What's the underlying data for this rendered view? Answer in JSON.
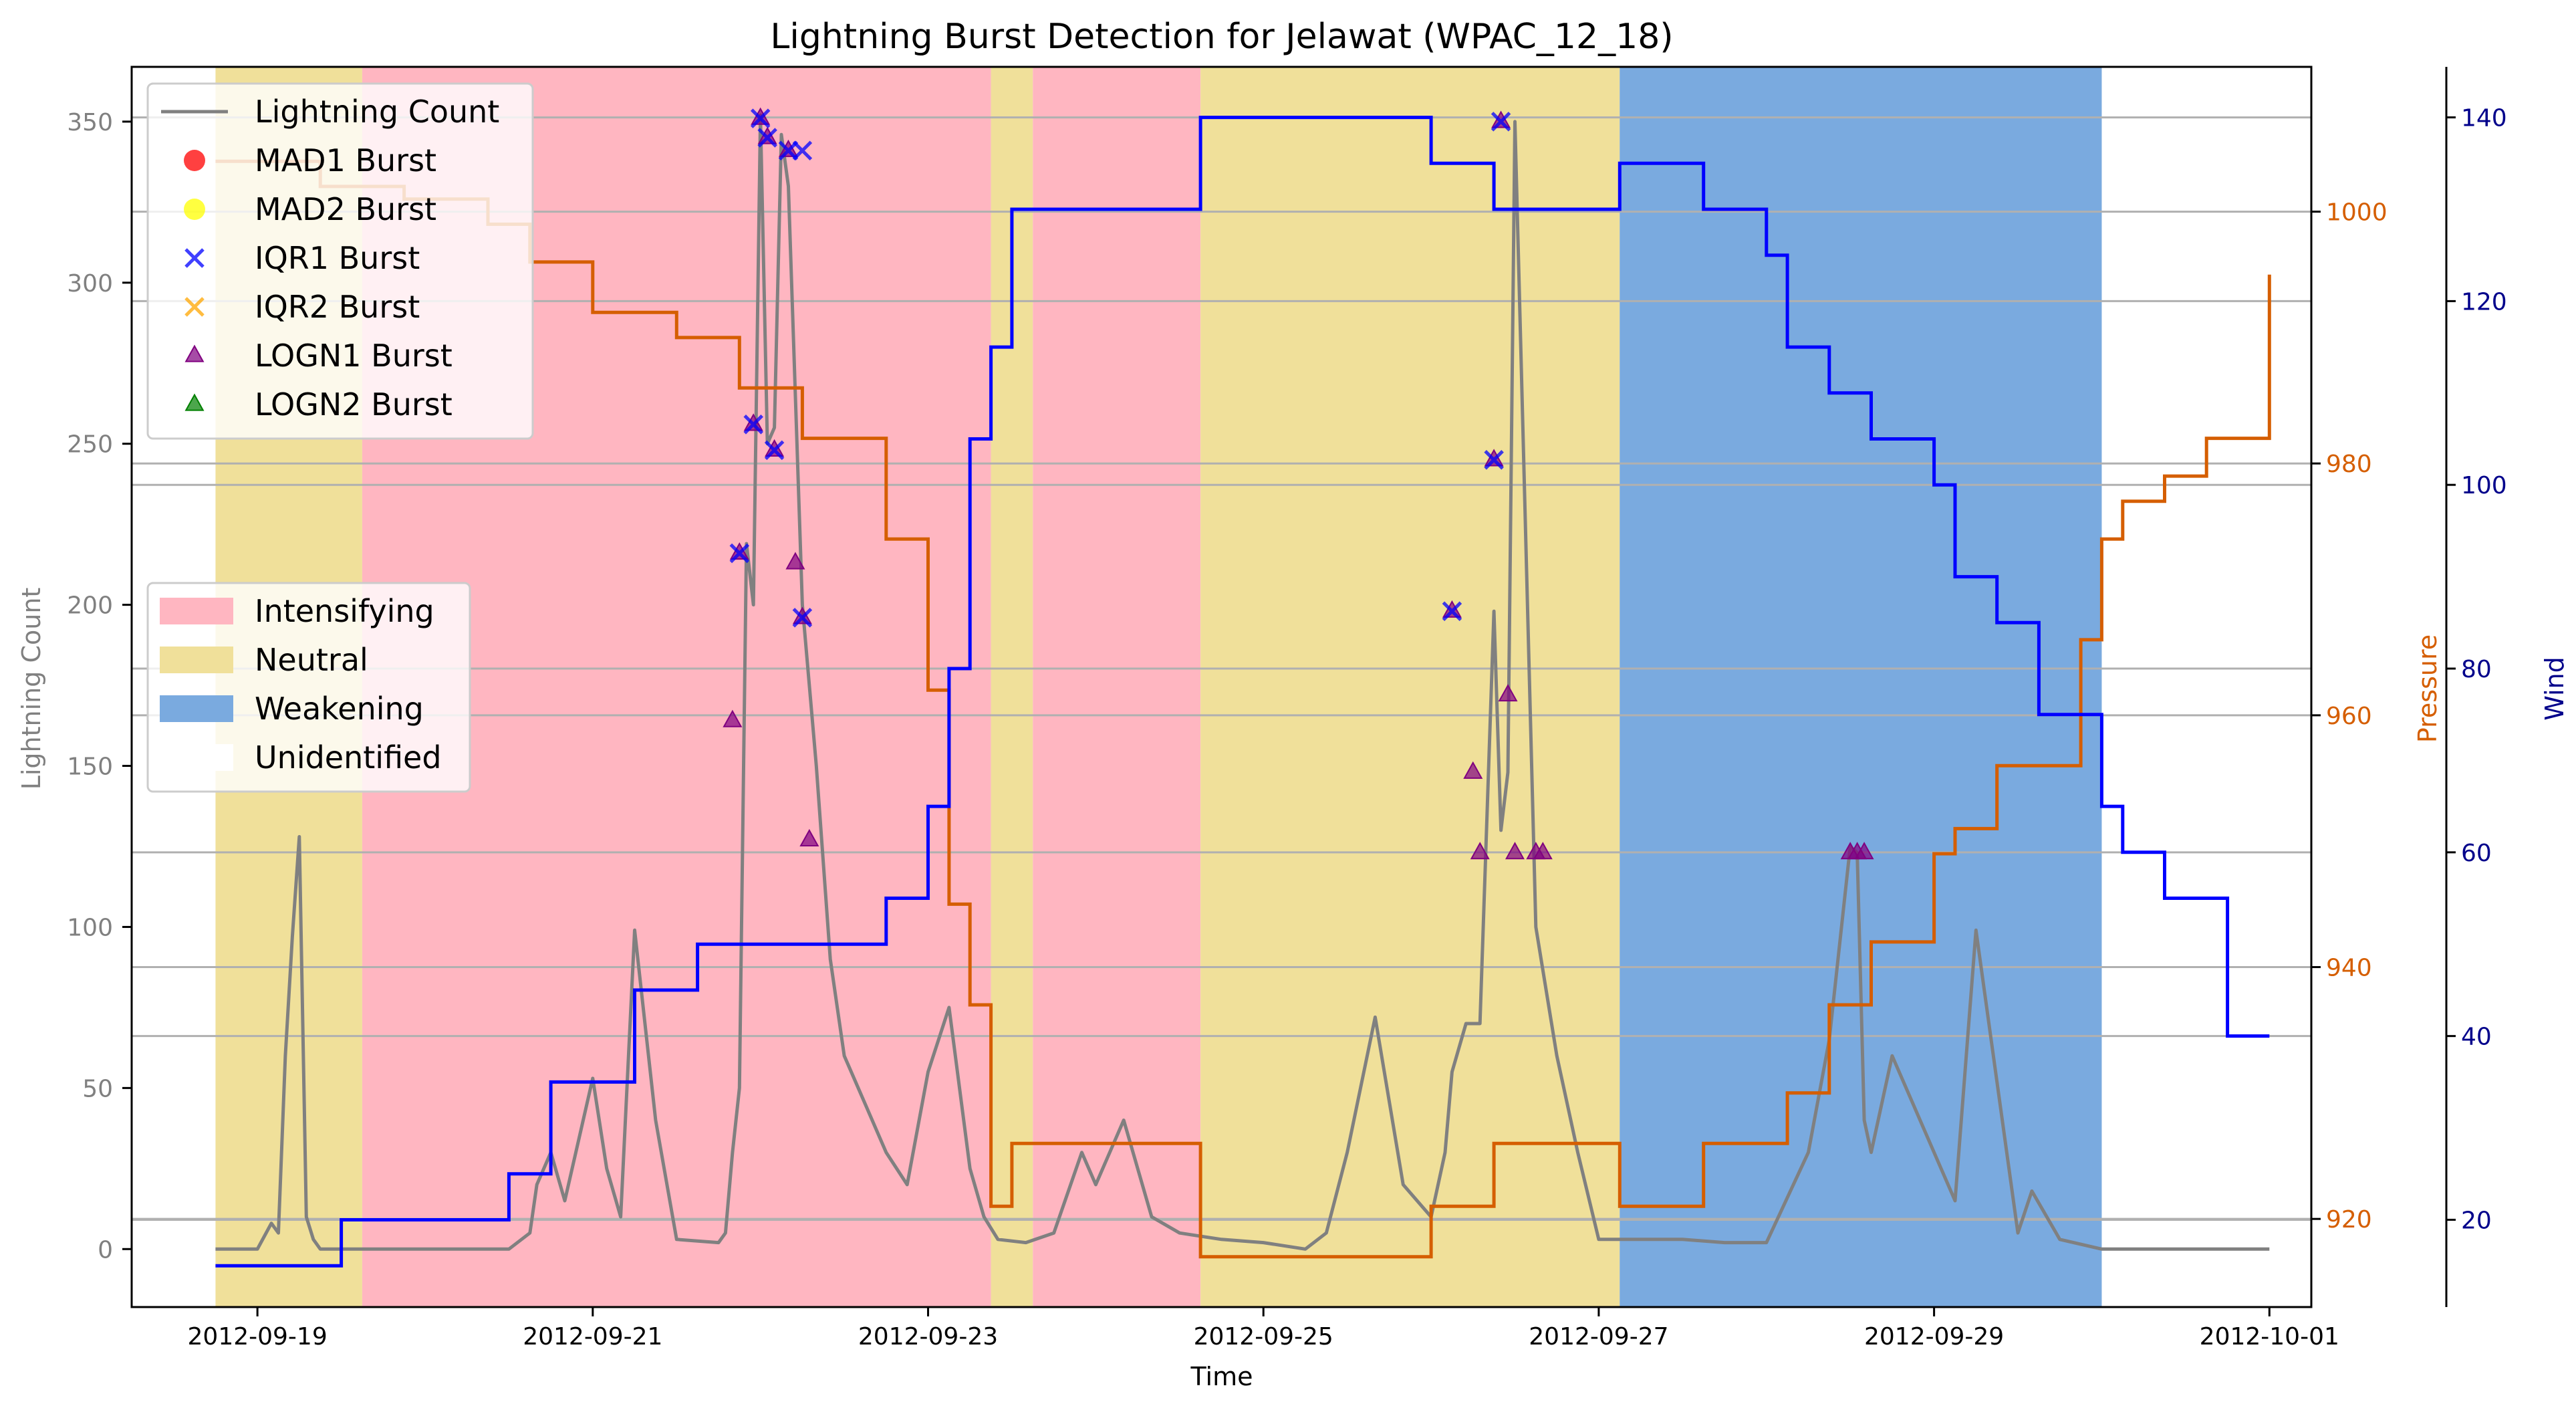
{
  "chart_data": {
    "type": "line",
    "title": "Lightning Burst Detection for Jelawat (WPAC_12_18)",
    "xlabel": "Time",
    "ylabel": "Lightning Count",
    "y2label": "Pressure",
    "y3label": "Wind",
    "xlim": [
      "2012-09-18T06:00",
      "2012-10-01T06:00"
    ],
    "ylim": [
      -18,
      367
    ],
    "y2lim": [
      913,
      1011.5
    ],
    "y3lim": [
      10.5,
      145.5
    ],
    "xticks": [
      "2012-09-19",
      "2012-09-21",
      "2012-09-23",
      "2012-09-25",
      "2012-09-27",
      "2012-09-29",
      "2012-10-01"
    ],
    "yticks": [
      0,
      50,
      100,
      150,
      200,
      250,
      300,
      350
    ],
    "y2ticks": [
      920,
      940,
      960,
      980,
      1000
    ],
    "y3ticks": [
      20,
      40,
      60,
      80,
      100,
      120,
      140
    ],
    "grid": "horizontal",
    "colors": {
      "lightning": "#808080",
      "pressure": "#d55e00",
      "wind": "#0000ff",
      "intensifying": "#ffb6c1",
      "neutral": "#f0e09a",
      "weakening": "#7aaadf",
      "mad1": "#ff0000",
      "mad2": "#ffff00",
      "iqr1": "#0000ff",
      "iqr2": "#ffa500",
      "logn1": "#800080",
      "logn2": "#008000",
      "pressure_axis": "#d55e00",
      "wind_axis": "#00008b",
      "lightning_axis": "#808080"
    },
    "legend_series": {
      "position": "upper-left",
      "entries": [
        {
          "label": "Lightning Count",
          "marker": "line",
          "color": "#808080"
        },
        {
          "label": "MAD1 Burst",
          "marker": "circle",
          "color": "#ff0000"
        },
        {
          "label": "MAD2 Burst",
          "marker": "circle",
          "color": "#ffff00"
        },
        {
          "label": "IQR1 Burst",
          "marker": "x",
          "color": "#0000ff"
        },
        {
          "label": "IQR2 Burst",
          "marker": "x",
          "color": "#ffa500"
        },
        {
          "label": "LOGN1 Burst",
          "marker": "triangle",
          "color": "#800080"
        },
        {
          "label": "LOGN2 Burst",
          "marker": "triangle",
          "color": "#008000"
        }
      ]
    },
    "legend_phases": {
      "position": "center-left",
      "entries": [
        {
          "label": "Intensifying",
          "color": "#ffb6c1"
        },
        {
          "label": "Neutral",
          "color": "#f0e09a"
        },
        {
          "label": "Weakening",
          "color": "#7aaadf"
        },
        {
          "label": "Unidentified",
          "color": "#ffffff"
        }
      ]
    },
    "phases": [
      {
        "start": "2012-09-18T18:00",
        "end": "2012-09-19T15:00",
        "phase": "Neutral"
      },
      {
        "start": "2012-09-19T15:00",
        "end": "2012-09-23T09:00",
        "phase": "Intensifying"
      },
      {
        "start": "2012-09-23T09:00",
        "end": "2012-09-23T15:00",
        "phase": "Neutral"
      },
      {
        "start": "2012-09-23T15:00",
        "end": "2012-09-24T15:00",
        "phase": "Intensifying"
      },
      {
        "start": "2012-09-24T15:00",
        "end": "2012-09-27T03:00",
        "phase": "Neutral"
      },
      {
        "start": "2012-09-27T03:00",
        "end": "2012-09-30T00:00",
        "phase": "Weakening"
      }
    ],
    "series": [
      {
        "name": "Lightning Count",
        "axis": "left",
        "style": "line",
        "x": [
          "2012-09-18T18:00",
          "2012-09-19T00:00",
          "2012-09-19T02:00",
          "2012-09-19T03:00",
          "2012-09-19T04:00",
          "2012-09-19T05:00",
          "2012-09-19T06:00",
          "2012-09-19T07:00",
          "2012-09-19T08:00",
          "2012-09-19T09:00",
          "2012-09-19T12:00",
          "2012-09-20T12:00",
          "2012-09-20T15:00",
          "2012-09-20T16:00",
          "2012-09-20T18:00",
          "2012-09-20T20:00",
          "2012-09-21T00:00",
          "2012-09-21T02:00",
          "2012-09-21T04:00",
          "2012-09-21T06:00",
          "2012-09-21T09:00",
          "2012-09-21T12:00",
          "2012-09-21T18:00",
          "2012-09-21T19:00",
          "2012-09-21T20:00",
          "2012-09-21T21:00",
          "2012-09-21T22:00",
          "2012-09-21T23:00",
          "2012-09-22T00:00",
          "2012-09-22T01:00",
          "2012-09-22T02:00",
          "2012-09-22T03:00",
          "2012-09-22T04:00",
          "2012-09-22T06:00",
          "2012-09-22T08:00",
          "2012-09-22T10:00",
          "2012-09-22T12:00",
          "2012-09-22T15:00",
          "2012-09-22T18:00",
          "2012-09-22T21:00",
          "2012-09-23T00:00",
          "2012-09-23T03:00",
          "2012-09-23T06:00",
          "2012-09-23T08:00",
          "2012-09-23T10:00",
          "2012-09-23T14:00",
          "2012-09-23T18:00",
          "2012-09-23T22:00",
          "2012-09-24T00:00",
          "2012-09-24T04:00",
          "2012-09-24T08:00",
          "2012-09-24T12:00",
          "2012-09-24T18:00",
          "2012-09-25T00:00",
          "2012-09-25T06:00",
          "2012-09-25T09:00",
          "2012-09-25T12:00",
          "2012-09-25T16:00",
          "2012-09-25T20:00",
          "2012-09-26T00:00",
          "2012-09-26T02:00",
          "2012-09-26T03:00",
          "2012-09-26T05:00",
          "2012-09-26T07:00",
          "2012-09-26T09:00",
          "2012-09-26T10:00",
          "2012-09-26T11:00",
          "2012-09-26T12:00",
          "2012-09-26T15:00",
          "2012-09-26T18:00",
          "2012-09-26T21:00",
          "2012-09-27T00:00",
          "2012-09-27T06:00",
          "2012-09-27T12:00",
          "2012-09-27T18:00",
          "2012-09-28T00:00",
          "2012-09-28T06:00",
          "2012-09-28T09:00",
          "2012-09-28T12:00",
          "2012-09-28T13:00",
          "2012-09-28T14:00",
          "2012-09-28T15:00",
          "2012-09-28T18:00",
          "2012-09-29T00:00",
          "2012-09-29T03:00",
          "2012-09-29T06:00",
          "2012-09-29T12:00",
          "2012-09-29T14:00",
          "2012-09-29T18:00",
          "2012-09-30T00:00",
          "2012-10-01T00:00"
        ],
        "values": [
          0,
          0,
          8,
          5,
          60,
          97,
          128,
          10,
          3,
          0,
          0,
          0,
          5,
          20,
          30,
          15,
          53,
          25,
          10,
          99,
          40,
          3,
          2,
          5,
          30,
          50,
          219,
          200,
          352,
          250,
          255,
          346,
          330,
          200,
          150,
          90,
          60,
          45,
          30,
          20,
          55,
          75,
          25,
          10,
          3,
          2,
          5,
          30,
          20,
          40,
          10,
          5,
          3,
          2,
          0,
          5,
          30,
          72,
          20,
          10,
          30,
          55,
          70,
          70,
          198,
          130,
          148,
          350,
          100,
          60,
          30,
          3,
          3,
          3,
          2,
          2,
          30,
          65,
          125,
          123,
          40,
          30,
          60,
          30,
          15,
          99,
          5,
          18,
          3,
          0,
          0
        ]
      },
      {
        "name": "Pressure",
        "axis": "right",
        "style": "step",
        "x": [
          "2012-09-18T18:00",
          "2012-09-19T09:00",
          "2012-09-19T21:00",
          "2012-09-20T09:00",
          "2012-09-20T15:00",
          "2012-09-21T00:00",
          "2012-09-21T12:00",
          "2012-09-21T21:00",
          "2012-09-22T06:00",
          "2012-09-22T18:00",
          "2012-09-23T00:00",
          "2012-09-23T03:00",
          "2012-09-23T06:00",
          "2012-09-23T09:00",
          "2012-09-23T12:00",
          "2012-09-24T15:00",
          "2012-09-26T00:00",
          "2012-09-26T09:00",
          "2012-09-27T03:00",
          "2012-09-27T15:00",
          "2012-09-28T03:00",
          "2012-09-28T09:00",
          "2012-09-28T15:00",
          "2012-09-29T00:00",
          "2012-09-29T03:00",
          "2012-09-29T09:00",
          "2012-09-29T21:00",
          "2012-09-30T00:00",
          "2012-09-30T03:00",
          "2012-09-30T09:00",
          "2012-09-30T15:00",
          "2012-10-01T00:00"
        ],
        "values": [
          1004,
          1002,
          1001,
          999,
          996,
          992,
          990,
          986,
          982,
          974,
          962,
          945,
          937,
          921,
          926,
          917,
          921,
          926,
          921,
          926,
          930,
          937,
          942,
          949,
          951,
          956,
          966,
          974,
          977,
          979,
          982,
          995
        ]
      },
      {
        "name": "Wind",
        "axis": "far-right",
        "style": "step",
        "x": [
          "2012-09-18T18:00",
          "2012-09-19T12:00",
          "2012-09-20T12:00",
          "2012-09-20T18:00",
          "2012-09-21T06:00",
          "2012-09-21T15:00",
          "2012-09-22T18:00",
          "2012-09-23T00:00",
          "2012-09-23T03:00",
          "2012-09-23T06:00",
          "2012-09-23T09:00",
          "2012-09-23T12:00",
          "2012-09-24T15:00",
          "2012-09-26T00:00",
          "2012-09-26T09:00",
          "2012-09-27T03:00",
          "2012-09-27T15:00",
          "2012-09-28T00:00",
          "2012-09-28T03:00",
          "2012-09-28T09:00",
          "2012-09-28T15:00",
          "2012-09-29T00:00",
          "2012-09-29T03:00",
          "2012-09-29T09:00",
          "2012-09-29T15:00",
          "2012-09-30T00:00",
          "2012-09-30T03:00",
          "2012-09-30T09:00",
          "2012-09-30T18:00",
          "2012-10-01T00:00"
        ],
        "values": [
          15,
          20,
          25,
          35,
          45,
          50,
          55,
          65,
          80,
          105,
          115,
          130,
          140,
          135,
          130,
          135,
          130,
          125,
          115,
          110,
          105,
          100,
          90,
          85,
          75,
          65,
          60,
          55,
          40,
          40
        ]
      },
      {
        "name": "IQR1 Burst",
        "axis": "left",
        "style": "marker-x",
        "x": [
          "2012-09-21T21:00",
          "2012-09-21T23:00",
          "2012-09-22T00:00",
          "2012-09-22T01:00",
          "2012-09-22T02:00",
          "2012-09-22T04:00",
          "2012-09-22T06:00",
          "2012-09-22T06:00",
          "2012-09-26T03:00",
          "2012-09-26T09:00",
          "2012-09-26T10:00"
        ],
        "values": [
          216,
          256,
          351,
          345,
          248,
          341,
          341,
          196,
          198,
          245,
          350
        ]
      },
      {
        "name": "LOGN1 Burst",
        "axis": "left",
        "style": "marker-triangle",
        "x": [
          "2012-09-21T20:00",
          "2012-09-21T21:00",
          "2012-09-21T23:00",
          "2012-09-22T00:00",
          "2012-09-22T01:00",
          "2012-09-22T02:00",
          "2012-09-22T04:00",
          "2012-09-22T05:00",
          "2012-09-22T06:00",
          "2012-09-22T07:00",
          "2012-09-26T03:00",
          "2012-09-26T06:00",
          "2012-09-26T07:00",
          "2012-09-26T09:00",
          "2012-09-26T10:00",
          "2012-09-26T11:00",
          "2012-09-26T12:00",
          "2012-09-26T15:00",
          "2012-09-26T16:00",
          "2012-09-28T12:00",
          "2012-09-28T13:00",
          "2012-09-28T14:00"
        ],
        "values": [
          164,
          216,
          256,
          351,
          345,
          248,
          341,
          213,
          196,
          127,
          198,
          148,
          123,
          245,
          350,
          172,
          123,
          123,
          123,
          123,
          123,
          123
        ]
      }
    ]
  }
}
